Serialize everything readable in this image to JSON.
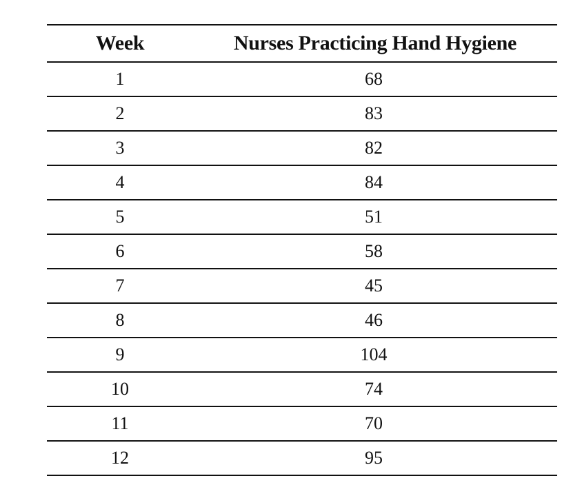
{
  "chart_data": {
    "type": "table",
    "columns": [
      "Week",
      "Nurses Practicing Hand Hygiene"
    ],
    "rows": [
      [
        "1",
        "68"
      ],
      [
        "2",
        "83"
      ],
      [
        "3",
        "82"
      ],
      [
        "4",
        "84"
      ],
      [
        "5",
        "51"
      ],
      [
        "6",
        "58"
      ],
      [
        "7",
        "45"
      ],
      [
        "8",
        "46"
      ],
      [
        "9",
        "104"
      ],
      [
        "10",
        "74"
      ],
      [
        "11",
        "70"
      ],
      [
        "12",
        "95"
      ]
    ]
  }
}
